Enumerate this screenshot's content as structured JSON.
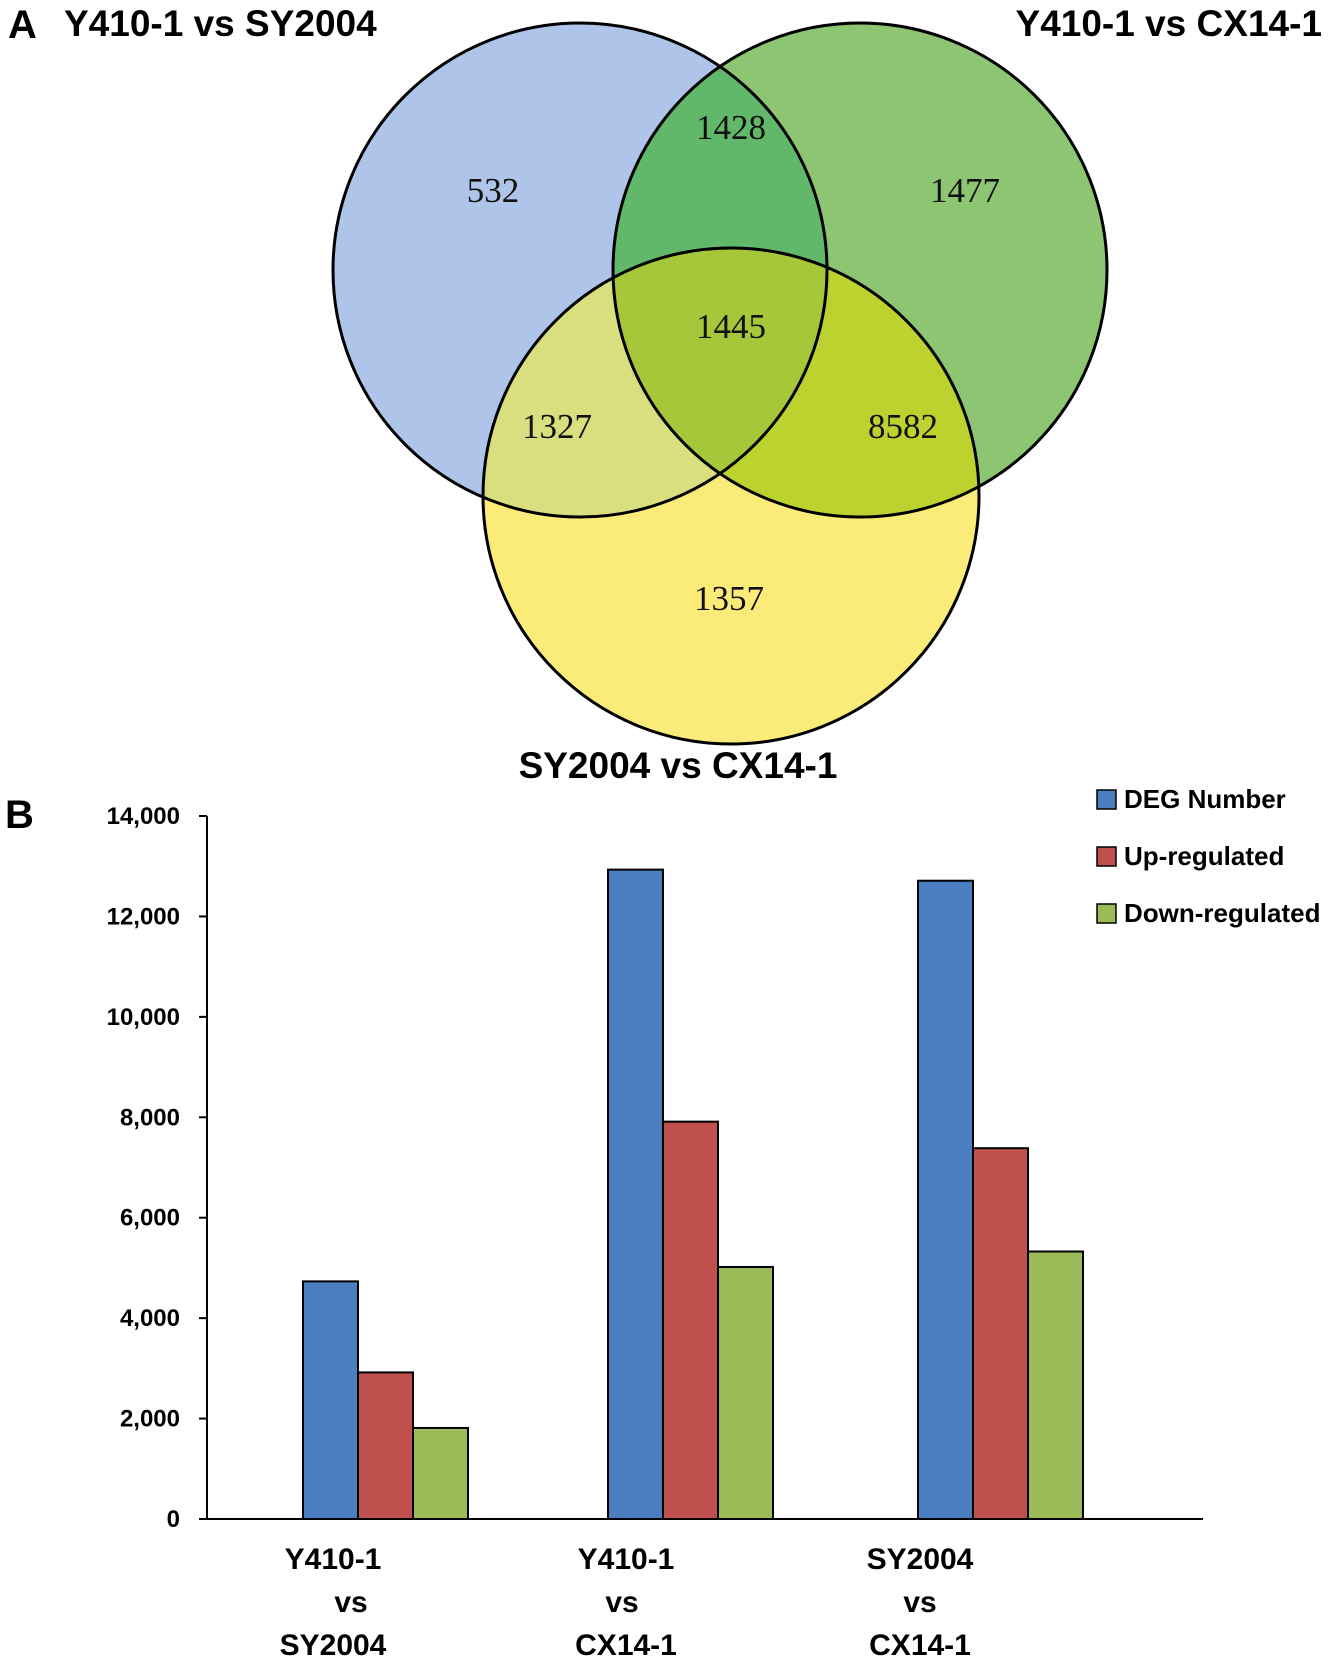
{
  "panel_a": {
    "letter": "A",
    "chart_type": "venn",
    "sets": [
      {
        "key": "s1",
        "name": "Y410-1 vs SY2004",
        "color": "#aec4e8"
      },
      {
        "key": "s2",
        "name": "Y410-1 vs CX14-1",
        "color": "#8dc572"
      },
      {
        "key": "s3",
        "name": "SY2004 vs CX14-1",
        "color": "#fbec7a"
      }
    ],
    "regions": [
      {
        "key": "r100",
        "label": "532",
        "sets": [
          "s1"
        ],
        "color": "#aec4e8"
      },
      {
        "key": "r010",
        "label": "1477",
        "sets": [
          "s2"
        ],
        "color": "#8dc572"
      },
      {
        "key": "r001",
        "label": "1357",
        "sets": [
          "s3"
        ],
        "color": "#fbec7a"
      },
      {
        "key": "r110",
        "label": "1428",
        "sets": [
          "s1",
          "s2"
        ],
        "color": "#62b86a"
      },
      {
        "key": "r101",
        "label": "1327",
        "sets": [
          "s1",
          "s3"
        ],
        "color": "#d9df7e"
      },
      {
        "key": "r011",
        "label": "8582",
        "sets": [
          "s2",
          "s3"
        ],
        "color": "#bcd32f"
      },
      {
        "key": "r111",
        "label": "1445",
        "sets": [
          "s1",
          "s2",
          "s3"
        ],
        "color": "#a6c73a"
      }
    ]
  },
  "chart_data": {
    "type": "bar",
    "panel_letter": "B",
    "categories": [
      [
        "Y410-1",
        "vs",
        "SY2004"
      ],
      [
        "Y410-1",
        "vs",
        "CX14-1"
      ],
      [
        "SY2004",
        "vs",
        "CX14-1"
      ]
    ],
    "series": [
      {
        "name": "DEG Number",
        "color": "#4a7ec1",
        "values": [
          4732,
          12932,
          12711
        ]
      },
      {
        "name": "Up-regulated",
        "color": "#c0504d",
        "values": [
          2919,
          7913,
          7384
        ]
      },
      {
        "name": "Down-regulated",
        "color": "#9bbb59",
        "values": [
          1813,
          5019,
          5327
        ]
      }
    ],
    "yticks": [
      "0",
      "2,000",
      "4,000",
      "6,000",
      "8,000",
      "10,000",
      "12,000",
      "14,000"
    ],
    "ylim": [
      0,
      14000
    ],
    "grid": false,
    "legend_position": "top-right"
  }
}
